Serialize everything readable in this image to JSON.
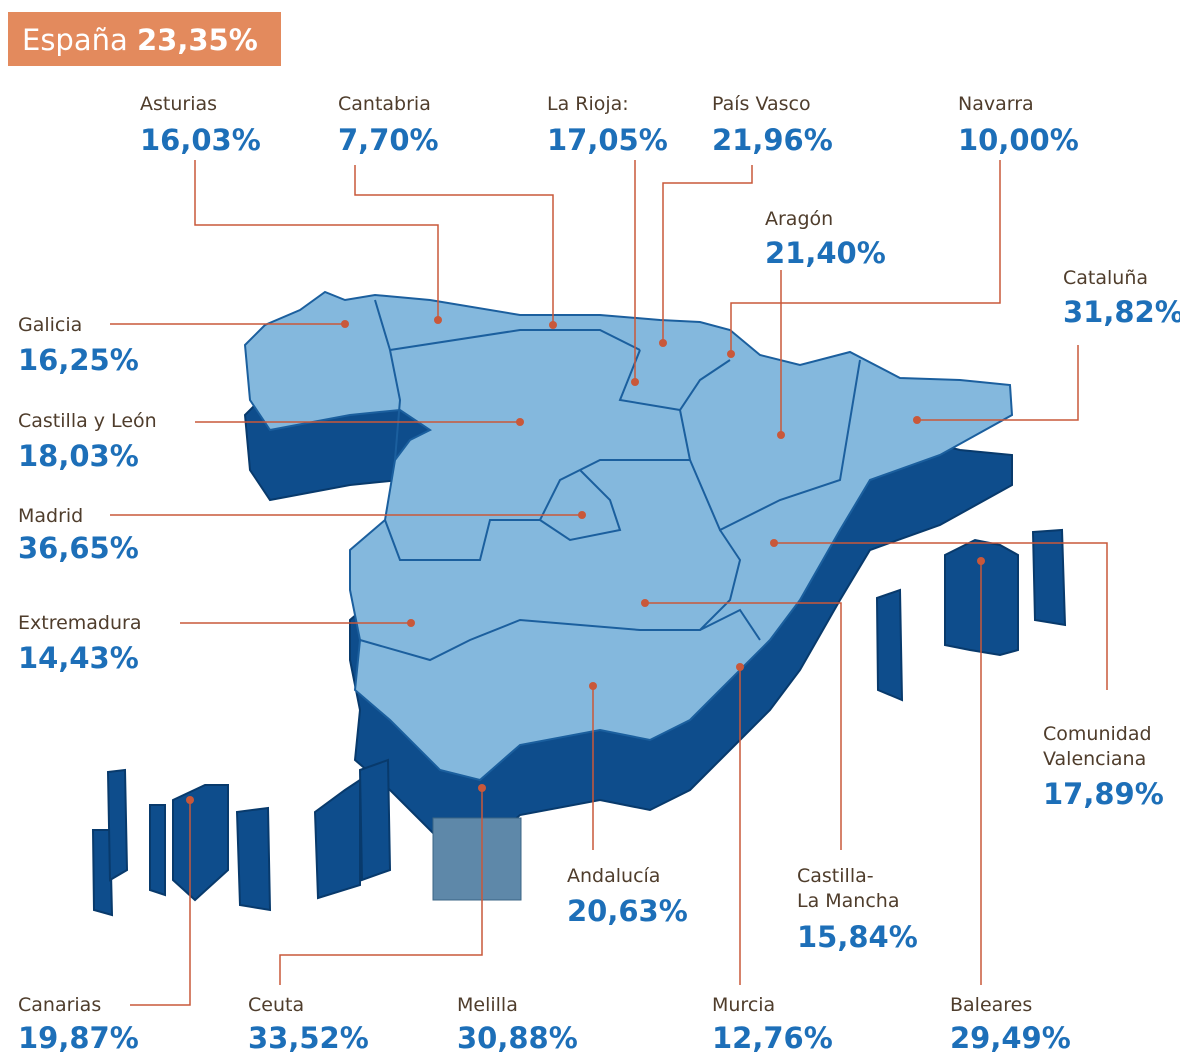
{
  "header": {
    "title": "España",
    "value": "23,35%"
  },
  "regions": [
    {
      "name": "Asturias",
      "value": "16,03%"
    },
    {
      "name": "Cantabria",
      "value": "7,70%"
    },
    {
      "name": "La Rioja:",
      "value": "17,05%"
    },
    {
      "name": "País Vasco",
      "value": "21,96%"
    },
    {
      "name": "Navarra",
      "value": "10,00%"
    },
    {
      "name": "Aragón",
      "value": "21,40%"
    },
    {
      "name": "Cataluña",
      "value": "31,82%"
    },
    {
      "name": "Galicia",
      "value": "16,25%"
    },
    {
      "name": "Castilla y León",
      "value": "18,03%"
    },
    {
      "name": "Madrid",
      "value": "36,65%"
    },
    {
      "name": "Extremadura",
      "value": "14,43%"
    },
    {
      "name": "Comunidad Valenciana",
      "value": "17,89%"
    },
    {
      "name": "Castilla-La Mancha",
      "value": "15,84%"
    },
    {
      "name": "Andalucía",
      "value": "20,63%"
    },
    {
      "name": "Murcia",
      "value": "12,76%"
    },
    {
      "name": "Baleares",
      "value": "29,49%"
    },
    {
      "name": "Canarias",
      "value": "19,87%"
    },
    {
      "name": "Ceuta",
      "value": "33,52%"
    },
    {
      "name": "Melilla",
      "value": "30,88%"
    }
  ]
}
